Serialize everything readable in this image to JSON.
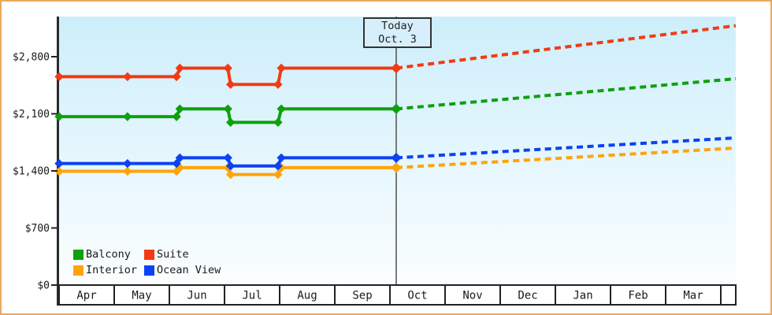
{
  "colors": {
    "page_border": "#e8a85f",
    "page_background": "#ffffff",
    "plot_bg_top": "#cdeefb",
    "plot_bg_bottom": "#fbfeff",
    "axis": "#2b2b2b",
    "band_border": "#222222",
    "today_line": "#444444",
    "today_box_fill": "#d6effb",
    "text": "#1a1a1a"
  },
  "today_box": {
    "line1": "Today",
    "line2": "Oct. 3"
  },
  "legend": {
    "items": [
      {
        "label": "Balcony",
        "color": "#0ea00e"
      },
      {
        "label": "Suite",
        "color": "#f23a14"
      },
      {
        "label": "Interior",
        "color": "#ffa408"
      },
      {
        "label": "Ocean View",
        "color": "#0c42f2"
      }
    ]
  },
  "chart_data": {
    "type": "line",
    "title": "",
    "xlabel": "",
    "ylabel": "",
    "grid": false,
    "legend_position": "bottom-left-inside",
    "x_axis": {
      "months": [
        "Apr",
        "May",
        "Jun",
        "Jul",
        "Aug",
        "Sep",
        "Oct",
        "Nov",
        "Dec",
        "Jan",
        "Feb",
        "Mar"
      ],
      "range_months": [
        0,
        12.27
      ]
    },
    "y_axis": {
      "ticks": [
        {
          "value": 0,
          "label": "$0"
        },
        {
          "value": 700,
          "label": "$700"
        },
        {
          "value": 1400,
          "label": "$1,400"
        },
        {
          "value": 2100,
          "label": "$2,100"
        },
        {
          "value": 2800,
          "label": "$2,800"
        }
      ],
      "value_at_plot_top": 3290
    },
    "today": {
      "line1": "Today",
      "line2": "Oct. 3",
      "month_position": 6.114
    },
    "series": [
      {
        "name": "Interior",
        "color": "#ffa408",
        "solid": [
          [
            0,
            1395
          ],
          [
            1.24,
            1395
          ],
          [
            2.13,
            1395
          ],
          [
            2.19,
            1440
          ],
          [
            3.06,
            1440
          ],
          [
            3.11,
            1355
          ],
          [
            3.97,
            1355
          ],
          [
            4.03,
            1440
          ],
          [
            6.114,
            1440
          ]
        ],
        "projection": [
          [
            6.114,
            1440
          ],
          [
            12.27,
            1680
          ]
        ]
      },
      {
        "name": "Ocean View",
        "color": "#0c42f2",
        "solid": [
          [
            0,
            1490
          ],
          [
            1.24,
            1490
          ],
          [
            2.13,
            1490
          ],
          [
            2.19,
            1560
          ],
          [
            3.06,
            1560
          ],
          [
            3.11,
            1460
          ],
          [
            3.97,
            1460
          ],
          [
            4.03,
            1560
          ],
          [
            6.114,
            1560
          ]
        ],
        "projection": [
          [
            6.114,
            1560
          ],
          [
            12.27,
            1805
          ]
        ]
      },
      {
        "name": "Balcony",
        "color": "#0ea00e",
        "solid": [
          [
            0,
            2065
          ],
          [
            1.24,
            2065
          ],
          [
            2.13,
            2065
          ],
          [
            2.19,
            2160
          ],
          [
            3.06,
            2160
          ],
          [
            3.11,
            1995
          ],
          [
            3.97,
            1995
          ],
          [
            4.03,
            2160
          ],
          [
            6.114,
            2160
          ]
        ],
        "projection": [
          [
            6.114,
            2160
          ],
          [
            12.27,
            2530
          ]
        ]
      },
      {
        "name": "Suite",
        "color": "#f23a14",
        "solid": [
          [
            0,
            2555
          ],
          [
            1.24,
            2555
          ],
          [
            2.13,
            2555
          ],
          [
            2.19,
            2660
          ],
          [
            3.06,
            2660
          ],
          [
            3.11,
            2460
          ],
          [
            3.97,
            2460
          ],
          [
            4.03,
            2660
          ],
          [
            6.114,
            2660
          ]
        ],
        "projection": [
          [
            6.114,
            2660
          ],
          [
            12.27,
            3180
          ]
        ]
      }
    ]
  }
}
